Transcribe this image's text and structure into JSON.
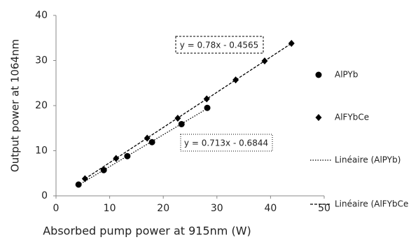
{
  "chart_data": {
    "type": "scatter",
    "xlabel": "Absorbed pump power at 915nm (W)",
    "ylabel": "Output power at 1064nm",
    "xlim": [
      0,
      50
    ],
    "xticks": [
      0,
      10,
      20,
      30,
      40,
      50
    ],
    "ylim": [
      0,
      40
    ],
    "yticks": [
      0,
      10,
      20,
      30,
      40
    ],
    "grid": false,
    "series": [
      {
        "name": "AlPYb",
        "color": "#000000",
        "marker": "circle",
        "trendline": "dotted",
        "x": [
          4.2,
          8.9,
          13.3,
          17.9,
          23.4,
          28.2
        ],
        "values": [
          2.5,
          5.7,
          8.8,
          11.9,
          15.9,
          19.5
        ]
      },
      {
        "name": "AlFYbCe",
        "color": "#000000",
        "marker": "diamond",
        "trendline": "dashed",
        "x": [
          5.4,
          11.2,
          17,
          22.7,
          28.1,
          33.5,
          38.9,
          43.9
        ],
        "values": [
          3.8,
          8.3,
          12.8,
          17.2,
          21.5,
          25.7,
          29.9,
          33.8
        ]
      }
    ],
    "trend_legend": [
      "Linéaire (AlPYb)",
      "Linéaire (AlFYbCe"
    ],
    "annotations": [
      "y = 0.78x - 0.4565",
      "y = 0.713x - 0.6844"
    ]
  }
}
